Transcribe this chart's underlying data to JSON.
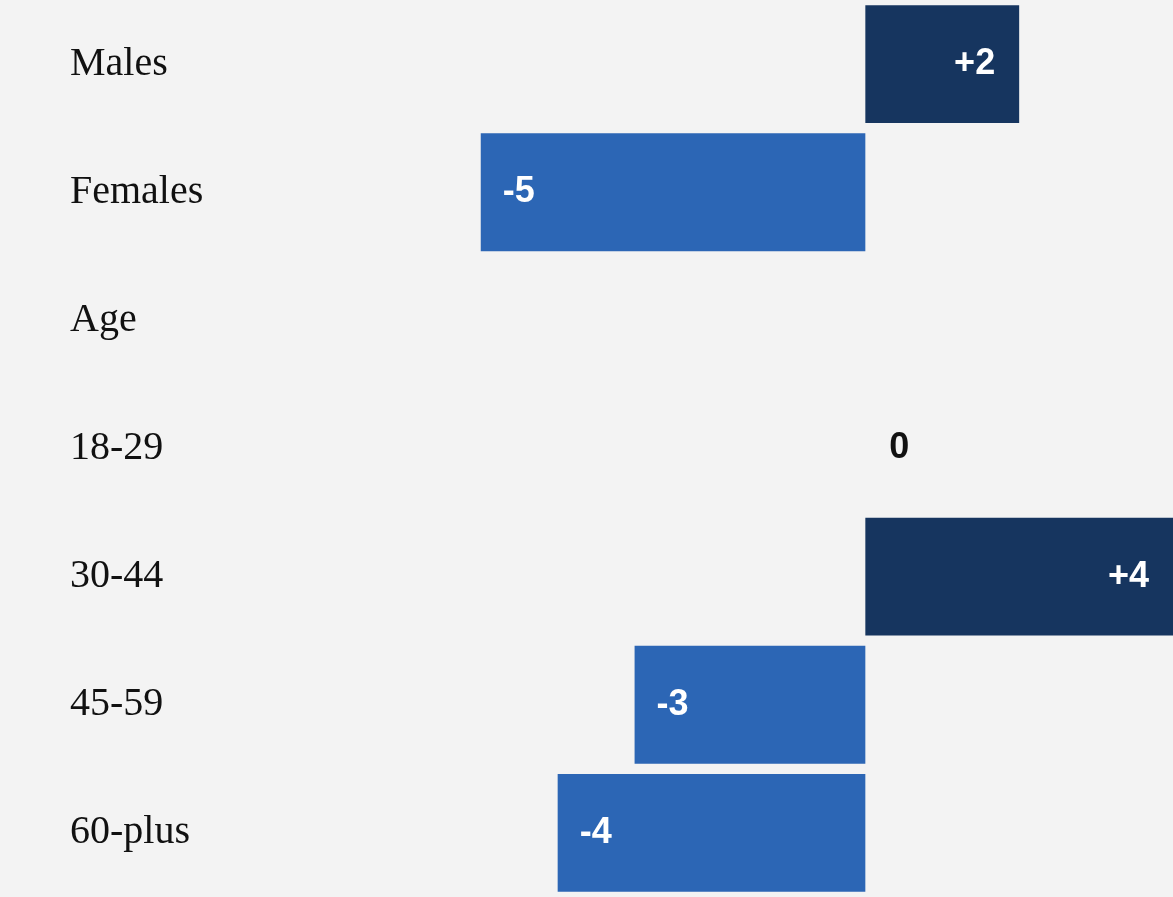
{
  "chart_data": {
    "type": "bar",
    "orientation": "horizontal",
    "categories": [
      "Males",
      "Females",
      "Age",
      "18-29",
      "30-44",
      "45-59",
      "60-plus"
    ],
    "values": [
      2,
      -5,
      null,
      0,
      4,
      -3,
      -4
    ],
    "colors": [
      "#16355f",
      "#2c66b5",
      null,
      "#16355f",
      "#16355f",
      "#2c66b5",
      "#2c66b5"
    ],
    "value_labels": [
      "+2",
      "-5",
      null,
      "0",
      "+4",
      "-3",
      "-4"
    ],
    "data_labels": true
  }
}
